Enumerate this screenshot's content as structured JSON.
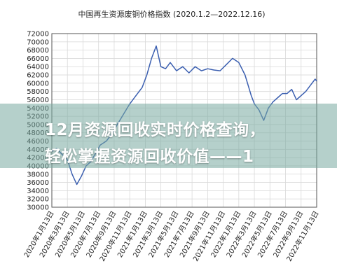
{
  "chart_data": {
    "type": "line",
    "title": "中国再生资源废铜价格指数 (2020.1.2—2022.12.16)",
    "ylim": [
      30000,
      72000
    ],
    "y_ticks": [
      30000,
      32000,
      34000,
      36000,
      38000,
      40000,
      42000,
      44000,
      46000,
      48000,
      50000,
      52000,
      54000,
      56000,
      58000,
      60000,
      62000,
      64000,
      66000,
      68000,
      70000,
      72000
    ],
    "x_tick_labels": [
      "2020年1月13日",
      "2020年3月13日",
      "2020年5月13日",
      "2020年7月13日",
      "2020年9月13日",
      "2020年11月13日",
      "2021年1月13日",
      "2021年3月13日",
      "2021年5月13日",
      "2021年7月13日",
      "2021年9月13日",
      "2021年11月13日",
      "2022年1月13日",
      "2022年3月13日",
      "2022年5月13日",
      "2022年7月13日",
      "2022年9月13日",
      "2022年11月13日"
    ],
    "grid": true,
    "line_color": "#3b5fb0",
    "series": [
      {
        "x": [
          0,
          0.3,
          0.6,
          1.0,
          1.3,
          1.6,
          1.9,
          2.2,
          2.5,
          2.8,
          3.1,
          3.5,
          3.9,
          4.2,
          4.6,
          5.0,
          5.4,
          5.8,
          6.1,
          6.4,
          6.7,
          7.0,
          7.3,
          7.6,
          8.0,
          8.4,
          8.8,
          9.2,
          9.6,
          10.0,
          10.4,
          10.8,
          11.2,
          11.6,
          12.0,
          12.4,
          12.8,
          13.0,
          13.3,
          13.6,
          13.9,
          14.2,
          14.5,
          14.8,
          15.1,
          15.4,
          15.7,
          16.0,
          16.3,
          16.6,
          16.9,
          17.0
        ],
        "values": [
          43500,
          44200,
          43000,
          41500,
          38000,
          35500,
          37500,
          40000,
          41000,
          43000,
          45000,
          46000,
          48000,
          50000,
          52500,
          55000,
          57000,
          59000,
          62000,
          66000,
          69000,
          64000,
          63500,
          65000,
          63000,
          64000,
          62500,
          64000,
          63000,
          63500,
          63200,
          63000,
          64500,
          66000,
          65000,
          62000,
          57000,
          55000,
          53500,
          51000,
          54000,
          55500,
          56500,
          57500,
          57500,
          58500,
          56000,
          57000,
          58000,
          59500,
          61000,
          60500
        ]
      }
    ]
  },
  "overlay": {
    "line1": "12月资源回收实时价格查询，",
    "line2": "轻松掌握资源回收价值——1"
  }
}
